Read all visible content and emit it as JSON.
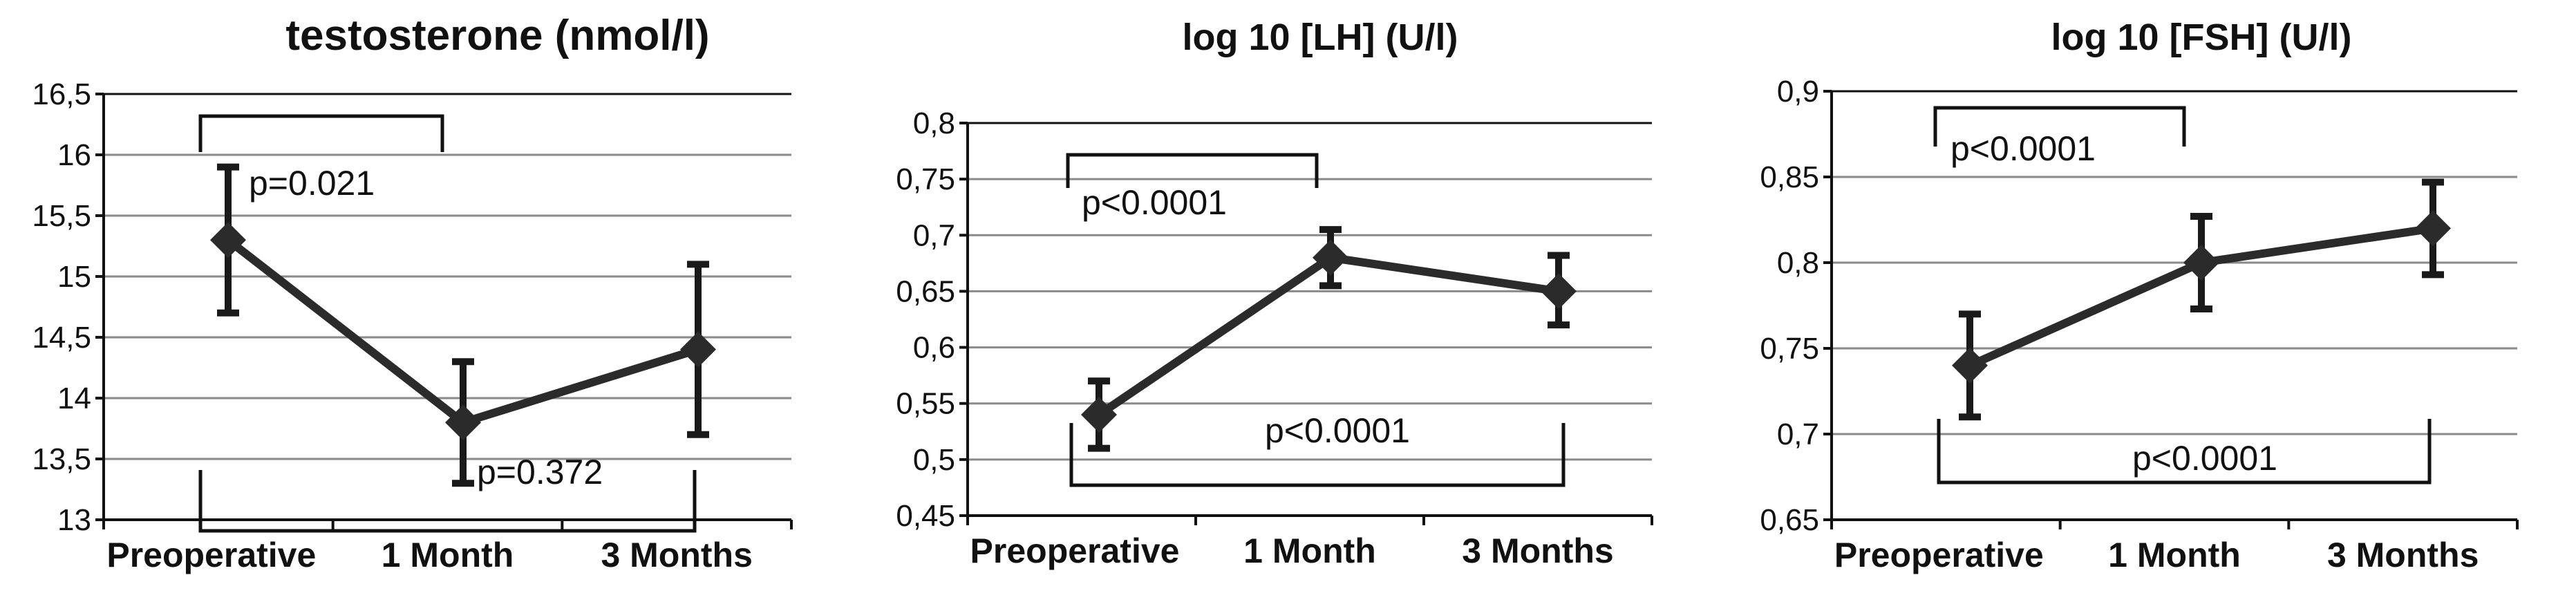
{
  "chart_data": [
    {
      "type": "line",
      "title": "testosterone (nmol/l)",
      "categories": [
        "Preoperative",
        "1 Month",
        "3 Months"
      ],
      "values": [
        15.3,
        13.8,
        14.4
      ],
      "error_low": [
        14.7,
        13.3,
        13.7
      ],
      "error_high": [
        15.9,
        14.3,
        15.1
      ],
      "ylim": [
        13,
        16.5
      ],
      "yticks": [
        "13",
        "13,5",
        "14",
        "14,5",
        "15",
        "15,5",
        "16",
        "16,5"
      ],
      "ytick_values": [
        13,
        13.5,
        14,
        14.5,
        15,
        15.5,
        16,
        16.5
      ],
      "grid": true,
      "annotations": [
        {
          "text": "p=0.021",
          "from": 0,
          "to": 1,
          "side": "top"
        },
        {
          "text": "p=0.372",
          "from": 0,
          "to": 2,
          "side": "bottom"
        }
      ]
    },
    {
      "type": "line",
      "title": "log 10 [LH] (U/l)",
      "categories": [
        "Preoperative",
        "1 Month",
        "3 Months"
      ],
      "values": [
        0.54,
        0.68,
        0.65
      ],
      "error_low": [
        0.51,
        0.655,
        0.62
      ],
      "error_high": [
        0.57,
        0.705,
        0.682
      ],
      "ylim": [
        0.45,
        0.8
      ],
      "yticks": [
        "0,45",
        "0,5",
        "0,55",
        "0,6",
        "0,65",
        "0,7",
        "0,75",
        "0,8"
      ],
      "ytick_values": [
        0.45,
        0.5,
        0.55,
        0.6,
        0.65,
        0.7,
        0.75,
        0.8
      ],
      "grid": true,
      "annotations": [
        {
          "text": "p<0.0001",
          "from": 0,
          "to": 1,
          "side": "top"
        },
        {
          "text": "p<0.0001",
          "from": 0,
          "to": 2,
          "side": "bottom"
        }
      ]
    },
    {
      "type": "line",
      "title": "log 10 [FSH] (U/l)",
      "categories": [
        "Preoperative",
        "1 Month",
        "3 Months"
      ],
      "values": [
        0.74,
        0.8,
        0.82
      ],
      "error_low": [
        0.71,
        0.773,
        0.793
      ],
      "error_high": [
        0.77,
        0.827,
        0.847
      ],
      "ylim": [
        0.65,
        0.9
      ],
      "yticks": [
        "0,65",
        "0,7",
        "0,75",
        "0,8",
        "0,85",
        "0,9"
      ],
      "ytick_values": [
        0.65,
        0.7,
        0.75,
        0.8,
        0.85,
        0.9
      ],
      "grid": true,
      "annotations": [
        {
          "text": "p<0.0001",
          "from": 0,
          "to": 1,
          "side": "top"
        },
        {
          "text": "p<0.0001",
          "from": 0,
          "to": 2,
          "side": "bottom"
        }
      ]
    }
  ]
}
